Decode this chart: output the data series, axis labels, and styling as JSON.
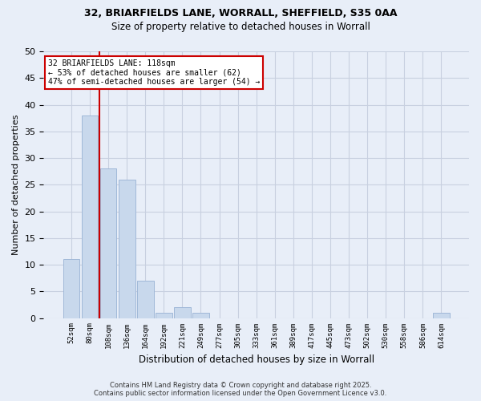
{
  "title1": "32, BRIARFIELDS LANE, WORRALL, SHEFFIELD, S35 0AA",
  "title2": "Size of property relative to detached houses in Worrall",
  "xlabel": "Distribution of detached houses by size in Worrall",
  "ylabel": "Number of detached properties",
  "bar_color": "#c8d8ec",
  "bar_edge_color": "#a0b8d8",
  "bin_labels": [
    "52sqm",
    "80sqm",
    "108sqm",
    "136sqm",
    "164sqm",
    "192sqm",
    "221sqm",
    "249sqm",
    "277sqm",
    "305sqm",
    "333sqm",
    "361sqm",
    "389sqm",
    "417sqm",
    "445sqm",
    "473sqm",
    "502sqm",
    "530sqm",
    "558sqm",
    "586sqm",
    "614sqm"
  ],
  "bar_values": [
    11,
    38,
    28,
    26,
    7,
    1,
    2,
    1,
    0,
    0,
    0,
    0,
    0,
    0,
    0,
    0,
    0,
    0,
    0,
    0,
    1
  ],
  "vline_index": 2,
  "vline_color": "#cc0000",
  "ylim": [
    0,
    50
  ],
  "yticks": [
    0,
    5,
    10,
    15,
    20,
    25,
    30,
    35,
    40,
    45,
    50
  ],
  "annotation_title": "32 BRIARFIELDS LANE: 118sqm",
  "annotation_line1": "← 53% of detached houses are smaller (62)",
  "annotation_line2": "47% of semi-detached houses are larger (54) →",
  "annotation_bbox_color": "#ffffff",
  "annotation_bbox_edge": "#cc0000",
  "footer1": "Contains HM Land Registry data © Crown copyright and database right 2025.",
  "footer2": "Contains public sector information licensed under the Open Government Licence v3.0.",
  "background_color": "#e8eef8",
  "grid_color": "#c8d0e0"
}
